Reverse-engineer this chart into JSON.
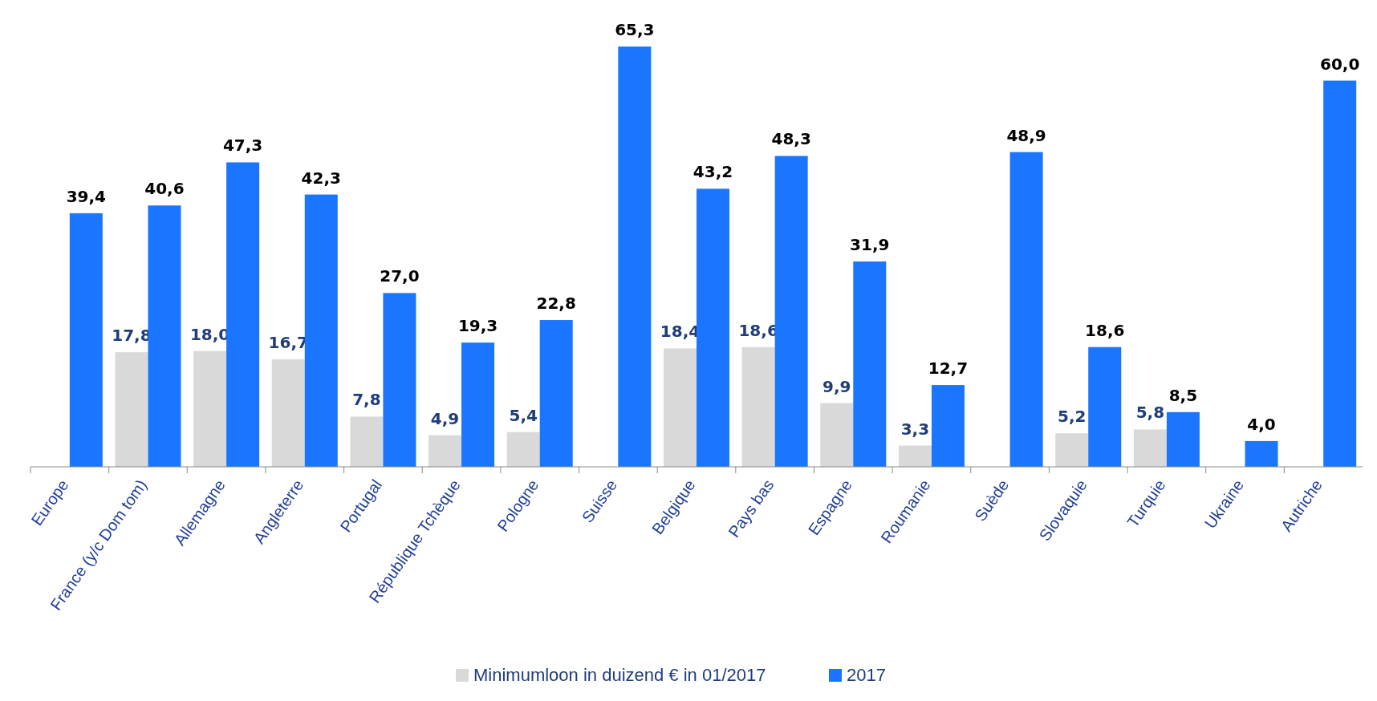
{
  "chart_data": {
    "type": "bar",
    "categories": [
      "Europe",
      "France (y/c Dom tom)",
      "Allemagne",
      "Angleterre",
      "Portugal",
      "République Tchèque",
      "Pologne",
      "Suisse",
      "Belgique",
      "Pays bas",
      "Espagne",
      "Roumanie",
      "Suède",
      "Slovaquie",
      "Turquie",
      "Ukraine",
      "Autriche"
    ],
    "series": [
      {
        "name": "Minimumloon in duizend € in 01/2017",
        "color": "#d9d9d9",
        "values": [
          null,
          17.8,
          18.0,
          16.7,
          7.8,
          4.9,
          5.4,
          null,
          18.4,
          18.6,
          9.9,
          3.3,
          null,
          5.2,
          5.8,
          null,
          null
        ],
        "value_labels": [
          null,
          "17,8",
          "18,0",
          "16,7",
          "7,8",
          "4,9",
          "5,4",
          null,
          "18,4",
          "18,6",
          "9,9",
          "3,3",
          null,
          "5,2",
          "5,8",
          null,
          null
        ]
      },
      {
        "name": "2017",
        "color": "#1a75ff",
        "values": [
          39.4,
          40.6,
          47.3,
          42.3,
          27.0,
          19.3,
          22.8,
          65.3,
          43.2,
          48.3,
          31.9,
          12.7,
          48.9,
          18.6,
          8.5,
          4.0,
          60.0
        ],
        "value_labels": [
          "39,4",
          "40,6",
          "47,3",
          "42,3",
          "27,0",
          "19,3",
          "22,8",
          "65,3",
          "43,2",
          "48,3",
          "31,9",
          "12,7",
          "48,9",
          "18,6",
          "8,5",
          "4,0",
          "60,0"
        ]
      }
    ],
    "legend": "bottom"
  }
}
